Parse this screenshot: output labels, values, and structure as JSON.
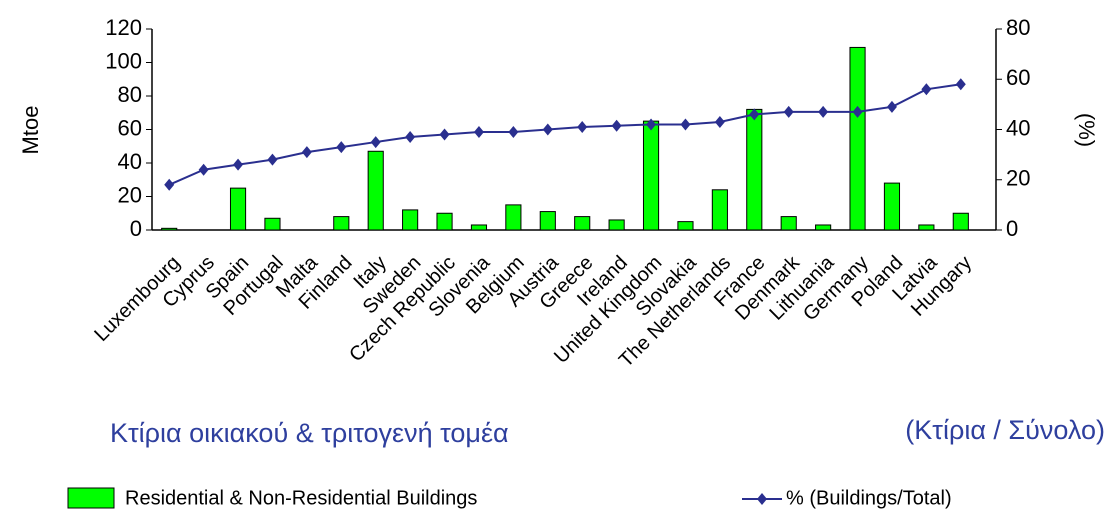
{
  "chart_data": {
    "type": "bar_line",
    "ylabel": "Mtoe",
    "y2label": "(%)",
    "annotations": [
      "Κτίρια οικιακού & τριτογενή τομέα",
      "(Κτίρια / Σύνολο)"
    ],
    "categories": [
      "Luxembourg",
      "Cyprus",
      "Spain",
      "Portugal",
      "Malta",
      "Finland",
      "Italy",
      "Sweden",
      "Czech Republic",
      "Slovenia",
      "Belgium",
      "Austria",
      "Greece",
      "Ireland",
      "United Kingdom",
      "Slovakia",
      "The Netherlands",
      "France",
      "Denmark",
      "Lithuania",
      "Germany",
      "Poland",
      "Latvia",
      "Hungary"
    ],
    "series": [
      {
        "name": "Residential & Non-Residential Buildings",
        "type": "bar",
        "color": "#00ff00",
        "values": [
          1,
          0,
          25,
          7,
          0,
          8,
          47,
          12,
          10,
          3,
          15,
          11,
          8,
          6,
          65,
          5,
          24,
          72,
          8,
          3,
          109,
          28,
          3,
          10
        ]
      },
      {
        "name": "% (Buildings/Total)",
        "type": "line",
        "axis": "y2",
        "color": "#2a2f8f",
        "values": [
          18,
          24,
          26,
          28,
          31,
          33,
          35,
          37,
          38,
          39,
          39,
          40,
          41,
          41.5,
          42,
          42,
          43,
          46,
          47,
          47,
          47,
          49,
          56,
          58
        ]
      }
    ],
    "ylim": [
      0,
      120
    ],
    "yticks": [
      0,
      20,
      40,
      60,
      80,
      100,
      120
    ],
    "y2lim": [
      0,
      80
    ],
    "y2ticks": [
      0,
      20,
      40,
      60,
      80
    ]
  }
}
